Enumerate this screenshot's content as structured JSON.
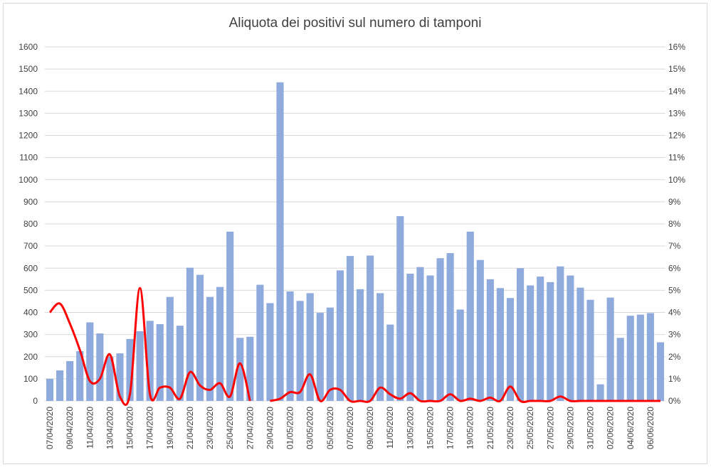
{
  "chart_data": {
    "type": "bar_line",
    "title": "Aliquota dei positivi sul numero di tamponi",
    "categories": [
      "07/04/2020",
      null,
      "09/04/2020",
      null,
      "11/04/2020",
      null,
      "13/04/2020",
      null,
      "15/04/2020",
      null,
      "17/04/2020",
      null,
      "19/04/2020",
      null,
      "21/04/2020",
      null,
      "23/04/2020",
      null,
      "25/04/2020",
      null,
      "27/04/2020",
      null,
      "29/04/2020",
      null,
      "01/05/2020",
      null,
      "03/05/2020",
      null,
      "05/05/2020",
      null,
      "07/05/2020",
      null,
      "09/05/2020",
      null,
      "11/05/2020",
      null,
      "13/05/2020",
      null,
      "15/05/2020",
      null,
      "17/05/2020",
      null,
      "19/05/2020",
      null,
      "21/05/2020",
      null,
      "23/05/2020",
      null,
      "25/05/2020",
      null,
      "27/05/2020",
      null,
      "29/05/2020",
      null,
      "31/05/2020",
      null,
      "02/06/2020",
      null,
      "04/06/2020",
      null,
      "06/06/2020",
      null
    ],
    "series": [
      {
        "type": "bar",
        "color": "#8faadc",
        "values": [
          100,
          138,
          180,
          225,
          355,
          305,
          200,
          215,
          280,
          315,
          362,
          347,
          470,
          340,
          602,
          570,
          470,
          515,
          765,
          285,
          290,
          525,
          442,
          1440,
          495,
          452,
          487,
          398,
          422,
          590,
          655,
          505,
          657,
          487,
          345,
          835,
          575,
          605,
          567,
          645,
          668,
          413,
          765,
          637,
          550,
          510,
          465,
          600,
          522,
          562,
          537,
          608,
          567,
          512,
          457,
          75,
          467,
          285,
          385,
          390,
          397,
          265
        ]
      },
      {
        "type": "line",
        "axis": "y2",
        "color": "#ff0000",
        "values": [
          4.0,
          4.4,
          3.5,
          2.3,
          0.9,
          1.0,
          2.1,
          0.2,
          0.3,
          5.1,
          0.3,
          0.6,
          0.6,
          0.1,
          1.3,
          0.7,
          0.5,
          0.8,
          0.2,
          1.7,
          0,
          null,
          0,
          0.1,
          0.4,
          0.4,
          1.2,
          0,
          0.5,
          0.5,
          0,
          0,
          0,
          0.6,
          0.3,
          0.1,
          0.35,
          0,
          0,
          0,
          0.3,
          0,
          0.1,
          0,
          0.15,
          0,
          0.65,
          0,
          0,
          0,
          0,
          0.2,
          0,
          0,
          0,
          0,
          0,
          0,
          0,
          0,
          0,
          0
        ]
      }
    ],
    "ylim": [
      0,
      1600
    ],
    "yticks": [
      0,
      100,
      200,
      300,
      400,
      500,
      600,
      700,
      800,
      900,
      1000,
      1100,
      1200,
      1300,
      1400,
      1500,
      1600
    ],
    "y2lim": [
      0,
      16
    ],
    "y2ticks": [
      {
        "value": 0,
        "label": "0%"
      },
      {
        "value": 1,
        "label": "1%"
      },
      {
        "value": 2,
        "label": "2%"
      },
      {
        "value": 3,
        "label": "3%"
      },
      {
        "value": 4,
        "label": "4%"
      },
      {
        "value": 5,
        "label": "5%"
      },
      {
        "value": 6,
        "label": "6%"
      },
      {
        "value": 7,
        "label": "7%"
      },
      {
        "value": 8,
        "label": "8%"
      },
      {
        "value": 9,
        "label": "9%"
      },
      {
        "value": 10,
        "label": "10%"
      },
      {
        "value": 11,
        "label": "11%"
      },
      {
        "value": 12,
        "label": "12%"
      },
      {
        "value": 13,
        "label": "13%"
      },
      {
        "value": 14,
        "label": "14%"
      },
      {
        "value": 15,
        "label": "15%"
      },
      {
        "value": 16,
        "label": "16%"
      }
    ],
    "grid": true
  }
}
